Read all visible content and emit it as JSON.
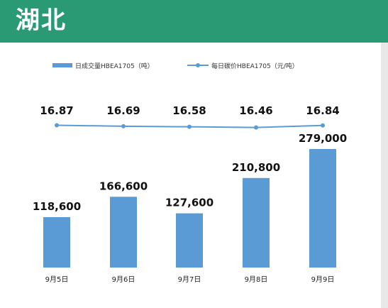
{
  "header": {
    "title": "湖北"
  },
  "chart_data": {
    "type": "bar",
    "categories": [
      "9月5日",
      "9月6日",
      "9月7日",
      "9月8日",
      "9月9日"
    ],
    "series": [
      {
        "name": "日成交量HBEA1705（吨）",
        "kind": "bar",
        "color": "#5b9bd5",
        "values": [
          118600,
          166600,
          127600,
          210800,
          279000
        ],
        "labels": [
          "118,600",
          "166,600",
          "127,600",
          "210,800",
          "279,000"
        ]
      },
      {
        "name": "每日碳价HBEA1705（元/吨）",
        "kind": "line",
        "color": "#5b9bd5",
        "values": [
          16.87,
          16.69,
          16.58,
          16.46,
          16.84
        ],
        "labels": [
          "16.87",
          "16.69",
          "16.58",
          "16.46",
          "16.84"
        ]
      }
    ],
    "legend_position": "top",
    "grid": false
  },
  "colors": {
    "header_bg": "#2a9a74",
    "bar": "#5b9bd5",
    "line": "#5b9bd5"
  }
}
